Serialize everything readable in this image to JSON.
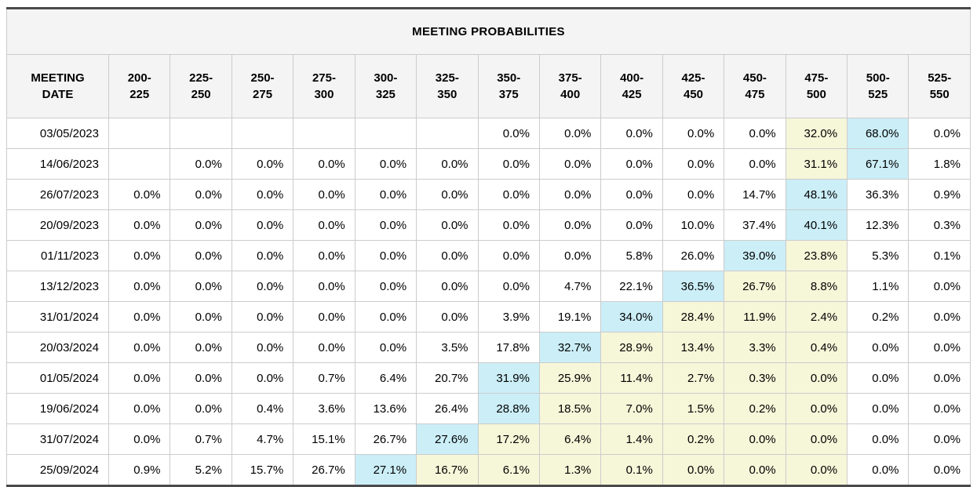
{
  "colors": {
    "cyan": "#cbeef7",
    "yellow": "#f6f6d9",
    "header_bg": "#f4f4f4",
    "grid": "#cccccc",
    "frame": "#4a4a4a"
  },
  "chart_data": {
    "type": "table",
    "title": "MEETING PROBABILITIES",
    "row_header": "MEETING DATE",
    "columns": [
      "200-225",
      "225-250",
      "250-275",
      "275-300",
      "300-325",
      "325-350",
      "350-375",
      "375-400",
      "400-425",
      "425-450",
      "450-475",
      "475-500",
      "500-525",
      "525-550"
    ],
    "highlight_colors": {
      "cyan": "#cbeef7",
      "yellow": "#f6f6d9"
    },
    "rows": [
      {
        "date": "03/05/2023",
        "values": [
          "",
          "",
          "",
          "",
          "",
          "",
          "0.0%",
          "0.0%",
          "0.0%",
          "0.0%",
          "0.0%",
          "32.0%",
          "68.0%",
          "0.0%"
        ],
        "hl": {
          "11": "yellow",
          "12": "cyan"
        }
      },
      {
        "date": "14/06/2023",
        "values": [
          "",
          "0.0%",
          "0.0%",
          "0.0%",
          "0.0%",
          "0.0%",
          "0.0%",
          "0.0%",
          "0.0%",
          "0.0%",
          "0.0%",
          "31.1%",
          "67.1%",
          "1.8%"
        ],
        "hl": {
          "11": "yellow",
          "12": "cyan"
        }
      },
      {
        "date": "26/07/2023",
        "values": [
          "0.0%",
          "0.0%",
          "0.0%",
          "0.0%",
          "0.0%",
          "0.0%",
          "0.0%",
          "0.0%",
          "0.0%",
          "0.0%",
          "14.7%",
          "48.1%",
          "36.3%",
          "0.9%"
        ],
        "hl": {
          "11": "cyan"
        }
      },
      {
        "date": "20/09/2023",
        "values": [
          "0.0%",
          "0.0%",
          "0.0%",
          "0.0%",
          "0.0%",
          "0.0%",
          "0.0%",
          "0.0%",
          "0.0%",
          "10.0%",
          "37.4%",
          "40.1%",
          "12.3%",
          "0.3%"
        ],
        "hl": {
          "11": "cyan"
        }
      },
      {
        "date": "01/11/2023",
        "values": [
          "0.0%",
          "0.0%",
          "0.0%",
          "0.0%",
          "0.0%",
          "0.0%",
          "0.0%",
          "0.0%",
          "5.8%",
          "26.0%",
          "39.0%",
          "23.8%",
          "5.3%",
          "0.1%"
        ],
        "hl": {
          "10": "cyan",
          "11": "yellow"
        }
      },
      {
        "date": "13/12/2023",
        "values": [
          "0.0%",
          "0.0%",
          "0.0%",
          "0.0%",
          "0.0%",
          "0.0%",
          "0.0%",
          "4.7%",
          "22.1%",
          "36.5%",
          "26.7%",
          "8.8%",
          "1.1%",
          "0.0%"
        ],
        "hl": {
          "9": "cyan",
          "10": "yellow",
          "11": "yellow"
        }
      },
      {
        "date": "31/01/2024",
        "values": [
          "0.0%",
          "0.0%",
          "0.0%",
          "0.0%",
          "0.0%",
          "0.0%",
          "3.9%",
          "19.1%",
          "34.0%",
          "28.4%",
          "11.9%",
          "2.4%",
          "0.2%",
          "0.0%"
        ],
        "hl": {
          "8": "cyan",
          "9": "yellow",
          "10": "yellow",
          "11": "yellow"
        }
      },
      {
        "date": "20/03/2024",
        "values": [
          "0.0%",
          "0.0%",
          "0.0%",
          "0.0%",
          "0.0%",
          "3.5%",
          "17.8%",
          "32.7%",
          "28.9%",
          "13.4%",
          "3.3%",
          "0.4%",
          "0.0%",
          "0.0%"
        ],
        "hl": {
          "7": "cyan",
          "8": "yellow",
          "9": "yellow",
          "10": "yellow",
          "11": "yellow"
        }
      },
      {
        "date": "01/05/2024",
        "values": [
          "0.0%",
          "0.0%",
          "0.0%",
          "0.7%",
          "6.4%",
          "20.7%",
          "31.9%",
          "25.9%",
          "11.4%",
          "2.7%",
          "0.3%",
          "0.0%",
          "0.0%",
          "0.0%"
        ],
        "hl": {
          "6": "cyan",
          "7": "yellow",
          "8": "yellow",
          "9": "yellow",
          "10": "yellow",
          "11": "yellow"
        }
      },
      {
        "date": "19/06/2024",
        "values": [
          "0.0%",
          "0.0%",
          "0.4%",
          "3.6%",
          "13.6%",
          "26.4%",
          "28.8%",
          "18.5%",
          "7.0%",
          "1.5%",
          "0.2%",
          "0.0%",
          "0.0%",
          "0.0%"
        ],
        "hl": {
          "6": "cyan",
          "7": "yellow",
          "8": "yellow",
          "9": "yellow",
          "10": "yellow",
          "11": "yellow"
        }
      },
      {
        "date": "31/07/2024",
        "values": [
          "0.0%",
          "0.7%",
          "4.7%",
          "15.1%",
          "26.7%",
          "27.6%",
          "17.2%",
          "6.4%",
          "1.4%",
          "0.2%",
          "0.0%",
          "0.0%",
          "0.0%",
          "0.0%"
        ],
        "hl": {
          "5": "cyan",
          "6": "yellow",
          "7": "yellow",
          "8": "yellow",
          "9": "yellow",
          "10": "yellow",
          "11": "yellow"
        }
      },
      {
        "date": "25/09/2024",
        "values": [
          "0.9%",
          "5.2%",
          "15.7%",
          "26.7%",
          "27.1%",
          "16.7%",
          "6.1%",
          "1.3%",
          "0.1%",
          "0.0%",
          "0.0%",
          "0.0%",
          "0.0%",
          "0.0%"
        ],
        "hl": {
          "4": "cyan",
          "5": "yellow",
          "6": "yellow",
          "7": "yellow",
          "8": "yellow",
          "9": "yellow",
          "10": "yellow",
          "11": "yellow"
        }
      }
    ]
  }
}
